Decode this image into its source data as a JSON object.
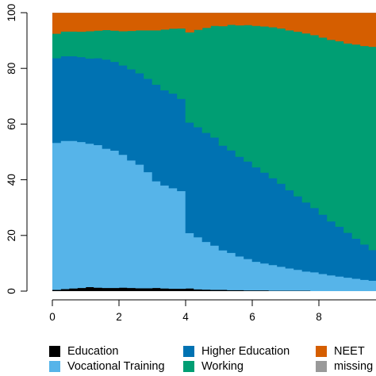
{
  "chart_data": {
    "type": "area",
    "stacked": true,
    "title": "",
    "xlabel": "",
    "ylabel": "",
    "xlim": [
      0,
      10
    ],
    "ylim": [
      0,
      100
    ],
    "xticks": [
      0,
      2,
      4,
      6,
      8
    ],
    "yticks": [
      0,
      20,
      40,
      60,
      80,
      100
    ],
    "grid": false,
    "legend_position": "bottom",
    "x": [
      0,
      0.25,
      0.5,
      0.75,
      1,
      1.25,
      1.5,
      1.75,
      2,
      2.25,
      2.5,
      2.75,
      3,
      3.25,
      3.5,
      3.75,
      4,
      4.25,
      4.5,
      4.75,
      5,
      5.25,
      5.5,
      5.75,
      6,
      6.25,
      6.5,
      6.75,
      7,
      7.25,
      7.5,
      7.75,
      8,
      8.25,
      8.5,
      8.75,
      9,
      9.25,
      9.5,
      9.75,
      10
    ],
    "series": [
      {
        "name": "Education",
        "color": "#000000",
        "values": [
          0.5,
          0.8,
          1,
          1.2,
          1.5,
          1.3,
          1.2,
          1.2,
          1.3,
          1.2,
          1.1,
          1.1,
          1.2,
          1.0,
          0.9,
          0.9,
          1.0,
          0.7,
          0.6,
          0.5,
          0.5,
          0.4,
          0.4,
          0.3,
          0.3,
          0.3,
          0.2,
          0.2,
          0.2,
          0.2,
          0.2,
          0.1,
          0.1,
          0.1,
          0.1,
          0.1,
          0.1,
          0.1,
          0.1,
          0.1,
          0.1
        ]
      },
      {
        "name": "Vocational Training",
        "color": "#56B4E9",
        "values": [
          52.8,
          53.2,
          53.0,
          52.4,
          51.5,
          51.2,
          50.0,
          49.3,
          47.7,
          45.8,
          44.4,
          41.7,
          38.3,
          37.0,
          36.1,
          35.1,
          19.9,
          18.7,
          17.1,
          15.9,
          14.2,
          13.4,
          12.1,
          11.3,
          10.3,
          9.7,
          9.2,
          8.6,
          8.0,
          7.5,
          6.9,
          6.7,
          6.1,
          5.6,
          5.2,
          4.8,
          4.4,
          4.0,
          3.7,
          3.4,
          3.1
        ]
      },
      {
        "name": "Higher Education",
        "color": "#0072B2",
        "values": [
          30.4,
          30.4,
          30.4,
          30.5,
          30.6,
          31.2,
          32.0,
          31.9,
          32.1,
          32.7,
          32.8,
          33.5,
          34.7,
          34.2,
          34.0,
          33.1,
          39.7,
          39.5,
          39.2,
          38.8,
          37.6,
          36.8,
          35.8,
          35.0,
          33.9,
          32.6,
          31.2,
          29.8,
          28.1,
          26.4,
          24.8,
          23.1,
          21.3,
          19.4,
          17.9,
          16.1,
          14.4,
          12.7,
          11.0,
          9.4,
          8.1
        ]
      },
      {
        "name": "Working",
        "color": "#009E73",
        "values": [
          8.8,
          8.9,
          8.9,
          9.1,
          9.8,
          9.9,
          10.6,
          11.2,
          12.3,
          13.8,
          15.4,
          17.4,
          19.5,
          21.8,
          23.3,
          25.3,
          32.4,
          35.0,
          37.7,
          40.1,
          42.9,
          45.1,
          47.2,
          49.0,
          50.8,
          52.5,
          54.2,
          55.8,
          57.4,
          59.1,
          60.7,
          62.1,
          63.6,
          65.2,
          66.6,
          68.0,
          69.7,
          71.3,
          73.0,
          74.6,
          76.1
        ]
      },
      {
        "name": "NEET",
        "color": "#D55E00",
        "values": [
          7.5,
          6.7,
          6.7,
          6.8,
          6.6,
          6.4,
          6.2,
          6.4,
          6.6,
          6.5,
          6.3,
          6.3,
          6.3,
          6.0,
          5.7,
          5.6,
          7.0,
          6.1,
          5.4,
          4.7,
          4.8,
          4.3,
          4.5,
          4.4,
          4.7,
          4.9,
          5.2,
          5.6,
          6.3,
          6.8,
          7.4,
          8.0,
          8.9,
          9.7,
          10.2,
          11.0,
          11.4,
          11.9,
          12.2,
          12.5,
          12.7
        ]
      },
      {
        "name": "missing",
        "color": "#999999",
        "values": [
          0,
          0,
          0,
          0,
          0,
          0,
          0,
          0,
          0,
          0,
          0,
          0,
          0,
          0,
          0,
          0,
          0,
          0,
          0,
          0,
          0,
          0,
          0,
          0,
          0,
          0,
          0,
          0,
          0,
          0,
          0,
          0,
          0,
          0,
          0,
          0,
          0,
          0,
          0,
          0,
          0
        ]
      }
    ]
  }
}
